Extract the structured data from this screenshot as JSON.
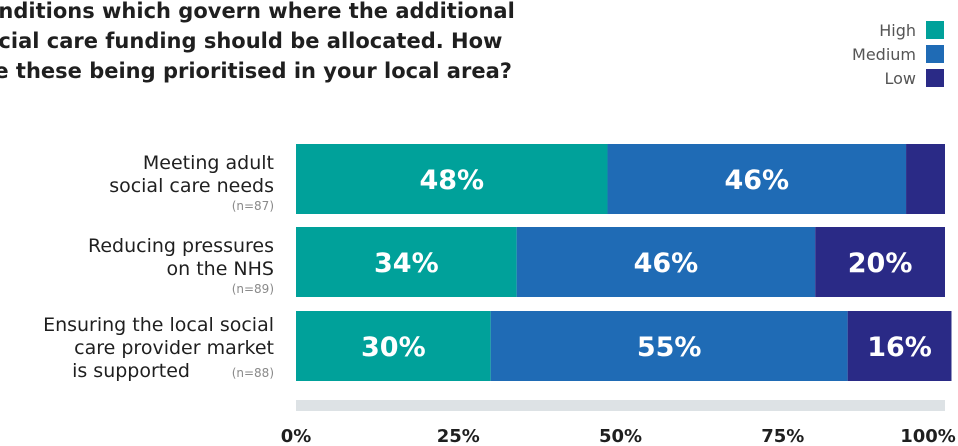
{
  "title_lines": [
    "onditions which govern where the additional",
    "ocial care funding should be allocated. How",
    "re these being prioritised in your local area?"
  ],
  "colors": {
    "High": "#00a19a",
    "Medium": "#1f6bb5",
    "Low": "#2a2a86",
    "axis": "#dde2e5"
  },
  "chart_data": {
    "type": "bar",
    "orientation": "horizontal",
    "stacked": true,
    "categories": [
      {
        "lines": [
          "Meeting adult",
          "social care needs"
        ],
        "n": "(n=87)"
      },
      {
        "lines": [
          "Reducing pressures",
          "on the NHS"
        ],
        "n": "(n=89)"
      },
      {
        "lines": [
          "Ensuring the local social",
          "care provider market",
          "is supported"
        ],
        "n": "(n=88)"
      }
    ],
    "series": [
      {
        "name": "High",
        "values": [
          48,
          34,
          30
        ],
        "labels": [
          "48%",
          "34%",
          "30%"
        ]
      },
      {
        "name": "Medium",
        "values": [
          46,
          46,
          55
        ],
        "labels": [
          "46%",
          "46%",
          "55%"
        ]
      },
      {
        "name": "Low",
        "values": [
          6,
          20,
          16
        ],
        "labels": [
          "",
          "20%",
          "16%"
        ]
      }
    ],
    "legend": [
      "High",
      "Medium",
      "Low"
    ],
    "legend_position": "top-right",
    "xlim": [
      0,
      100
    ],
    "ticks": [
      "0%",
      "25%",
      "50%",
      "75%",
      "100%"
    ]
  }
}
